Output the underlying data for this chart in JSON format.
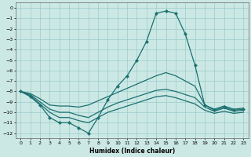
{
  "xlabel": "Humidex (Indice chaleur)",
  "xlim": [
    -0.5,
    23.5
  ],
  "ylim": [
    -12.5,
    0.5
  ],
  "yticks": [
    0,
    -1,
    -2,
    -3,
    -4,
    -5,
    -6,
    -7,
    -8,
    -9,
    -10,
    -11,
    -12
  ],
  "xticks": [
    0,
    1,
    2,
    3,
    4,
    5,
    6,
    7,
    8,
    9,
    10,
    11,
    12,
    13,
    14,
    15,
    16,
    17,
    18,
    19,
    20,
    21,
    22,
    23
  ],
  "bg_color": "#cce8e4",
  "grid_color": "#99cccc",
  "line_color": "#1a7070",
  "line_main_x": [
    0,
    1,
    2,
    3,
    4,
    5,
    6,
    7,
    8,
    9,
    10,
    11,
    12,
    13,
    14,
    15,
    16,
    17,
    18,
    19,
    20,
    21,
    22,
    23
  ],
  "line_main_y": [
    -8.0,
    -8.5,
    -9.3,
    -10.5,
    -11.0,
    -11.0,
    -11.5,
    -12.0,
    -10.5,
    -8.8,
    -7.5,
    -6.5,
    -5.0,
    -3.2,
    -0.5,
    -0.3,
    -0.5,
    -2.5,
    -5.5,
    -9.3,
    -9.8,
    -9.5,
    -9.8,
    -9.7
  ],
  "line_a_x": [
    0,
    1,
    2,
    3,
    4,
    5,
    6,
    7,
    8,
    9,
    10,
    11,
    12,
    13,
    14,
    15,
    16,
    17,
    18,
    19,
    20,
    21,
    22,
    23
  ],
  "line_a_y": [
    -8.0,
    -8.2,
    -8.7,
    -9.3,
    -9.4,
    -9.4,
    -9.5,
    -9.3,
    -8.9,
    -8.5,
    -8.1,
    -7.7,
    -7.3,
    -6.9,
    -6.5,
    -6.2,
    -6.5,
    -7.0,
    -7.5,
    -9.3,
    -9.7,
    -9.4,
    -9.7,
    -9.6
  ],
  "line_b_x": [
    0,
    1,
    2,
    3,
    4,
    5,
    6,
    7,
    8,
    9,
    10,
    11,
    12,
    13,
    14,
    15,
    16,
    17,
    18,
    19,
    20,
    21,
    22,
    23
  ],
  "line_b_y": [
    -8.0,
    -8.3,
    -9.0,
    -9.7,
    -10.0,
    -10.0,
    -10.3,
    -10.5,
    -10.0,
    -9.5,
    -9.1,
    -8.8,
    -8.5,
    -8.2,
    -7.9,
    -7.8,
    -8.0,
    -8.3,
    -8.6,
    -9.5,
    -9.9,
    -9.6,
    -9.9,
    -9.8
  ],
  "line_c_x": [
    0,
    1,
    2,
    3,
    4,
    5,
    6,
    7,
    8,
    9,
    10,
    11,
    12,
    13,
    14,
    15,
    16,
    17,
    18,
    19,
    20,
    21,
    22,
    23
  ],
  "line_c_y": [
    -8.0,
    -8.4,
    -9.2,
    -10.0,
    -10.5,
    -10.5,
    -10.8,
    -11.0,
    -10.5,
    -10.0,
    -9.7,
    -9.4,
    -9.1,
    -8.8,
    -8.5,
    -8.4,
    -8.6,
    -8.9,
    -9.2,
    -9.8,
    -10.1,
    -9.9,
    -10.1,
    -10.0
  ]
}
